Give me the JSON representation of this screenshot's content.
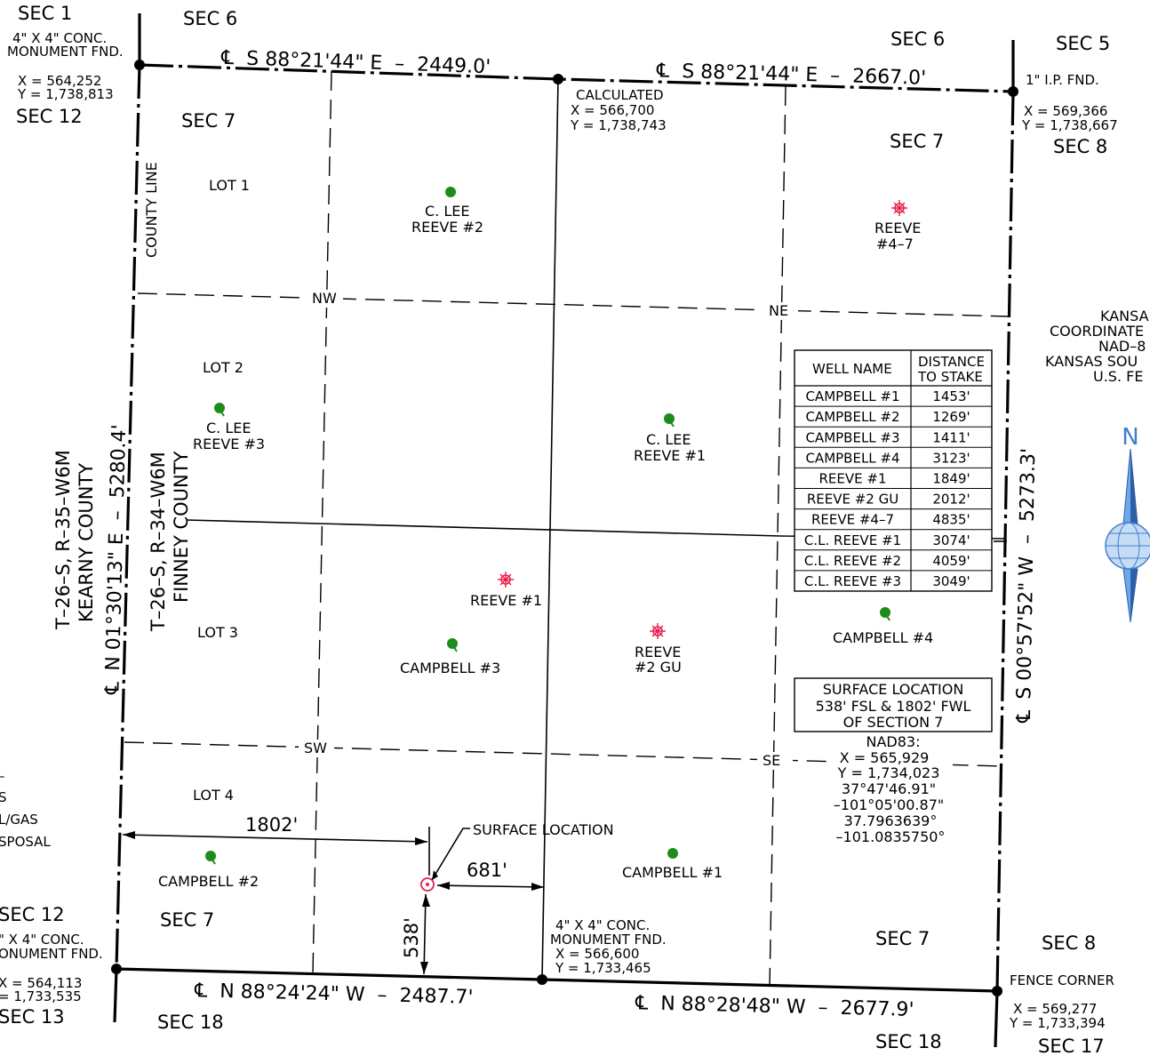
{
  "section_labels": [
    "SEC 1",
    "SEC 6",
    "SEC 6",
    "SEC 5",
    "SEC 12",
    "SEC 7",
    "SEC 7",
    "SEC 8",
    "SEC 12",
    "SEC 7",
    "SEC 7",
    "SEC 8",
    "SEC 13",
    "SEC 18",
    "SEC 18",
    "SEC 17"
  ],
  "corners": {
    "nw_monument": [
      "4\" X 4\" CONC.",
      "MONUMENT FND.",
      "X = 564,252",
      "Y = 1,738,813"
    ],
    "n_calculated": [
      "CALCULATED",
      "X = 566,700",
      "Y = 1,738,743"
    ],
    "ne_pipe": [
      "1\" I.P. FND.",
      "X = 569,366",
      "Y = 1,738,667"
    ],
    "sw_monument": [
      "\" X 4\" CONC.",
      "ONUMENT FND.",
      "X = 564,113",
      "= 1,733,535"
    ],
    "s_monument": [
      "4\" X 4\" CONC.",
      "MONUMENT FND.",
      "X = 566,600",
      "Y = 1,733,465"
    ],
    "se_fence": [
      "FENCE CORNER",
      "X = 569,277",
      "Y = 1,733,394"
    ]
  },
  "bearings": {
    "north_left": "S 88°21'44\" E  –  2449.0'",
    "north_right": "S 88°21'44\" E  –  2667.0'",
    "south_left": "N 88°24'24\" W  –  2487.7'",
    "south_right": "N 88°28'48\" W  –  2677.9'",
    "west": "N 01°30'13\" E  –  5280.4'",
    "east": "S 00°57'52\" W  –  5273.3'",
    "centerline_symbol": "℄"
  },
  "township_labels": [
    "T–26–S, R–35–W6M",
    "KEARNY COUNTY",
    "T–26–S, R–34–W6M",
    "FINNEY COUNTY"
  ],
  "county_line": "COUNTY LINE",
  "lots": [
    "LOT 1",
    "LOT 2",
    "LOT 3",
    "LOT 4"
  ],
  "quarter_labels": [
    "NW",
    "NE",
    "SW",
    "SE"
  ],
  "wells": [
    {
      "label": [
        "C. LEE",
        "REEVE #2"
      ],
      "symbol": "green-dot"
    },
    {
      "label": [
        "REEVE",
        "#4–7"
      ],
      "symbol": "red-gas"
    },
    {
      "label": [
        "C. LEE",
        "REEVE #3"
      ],
      "symbol": "green-plugged"
    },
    {
      "label": [
        "C. LEE",
        "REEVE #1"
      ],
      "symbol": "green-plugged"
    },
    {
      "label": [
        "REEVE #1"
      ],
      "symbol": "red-gas"
    },
    {
      "label": [
        "CAMPBELL #3"
      ],
      "symbol": "green-plugged"
    },
    {
      "label": [
        "REEVE",
        "#2 GU"
      ],
      "symbol": "red-gas"
    },
    {
      "label": [
        "CAMPBELL #4"
      ],
      "symbol": "green-plugged"
    },
    {
      "label": [
        "CAMPBELL #2"
      ],
      "symbol": "green-plugged"
    },
    {
      "label": [
        "CAMPBELL #1"
      ],
      "symbol": "green-dot"
    }
  ],
  "distance_table": {
    "headers": [
      "WELL NAME",
      "DISTANCE",
      "TO STAKE"
    ],
    "rows": [
      [
        "CAMPBELL #1",
        "1453'"
      ],
      [
        "CAMPBELL #2",
        "1269'"
      ],
      [
        "CAMPBELL #3",
        "1411'"
      ],
      [
        "CAMPBELL #4",
        "3123'"
      ],
      [
        "REEVE #1",
        "1849'"
      ],
      [
        "REEVE #2 GU",
        "2012'"
      ],
      [
        "REEVE #4–7",
        "4835'"
      ],
      [
        "C.L. REEVE #1",
        "3074'"
      ],
      [
        "C.L. REEVE #2",
        "4059'"
      ],
      [
        "C.L. REEVE #3",
        "3049'"
      ]
    ]
  },
  "surface_box": [
    "SURFACE LOCATION",
    "538' FSL & 1802' FWL",
    "OF SECTION 7"
  ],
  "nad83": [
    "NAD83:",
    "X = 565,929",
    "Y = 1,734,023",
    "37°47'46.91\"",
    "–101°05'00.87\"",
    "37.7963639°",
    "–101.0835750°"
  ],
  "surface_location_label": "SURFACE LOCATION",
  "dimensions": {
    "fwl": "1802'",
    "east_offset": "681'",
    "fsl": "538'"
  },
  "kansas_note": [
    "KANSA",
    "COORDINATE",
    "NAD–8",
    "KANSAS SOU",
    "U.S. FE"
  ],
  "north_letter": "N",
  "legend_fragments": [
    "–",
    "S",
    "L/GAS",
    "SPOSAL"
  ],
  "colors": {
    "green": "#1c8c1c",
    "red": "#e8204e",
    "blue": "#3f7fd0"
  }
}
